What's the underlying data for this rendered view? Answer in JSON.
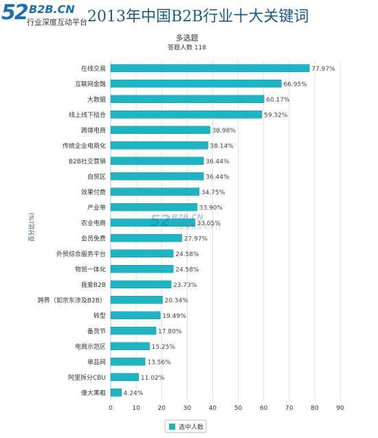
{
  "header": {
    "logo_number": "52",
    "logo_brand": "B2B.CN",
    "logo_tagline": "行业深度互动平台",
    "title": "2013年中国B2B行业十大关键词"
  },
  "watermark": {
    "number": "52",
    "brand": "B2B.CN",
    "tagline": "行业深度互动平台"
  },
  "colors": {
    "bar": "#1fb4c3",
    "bar_stroke": "#179aa8",
    "title": "#1a5a8c",
    "axis_label": "#2a4a7a",
    "grid": "#e0e0e0"
  },
  "chart_data": {
    "type": "bar",
    "orientation": "horizontal",
    "title": "多选题",
    "subtitle": "答题人数 118",
    "ylabel": "百分比(%)",
    "xlabel": "",
    "xlim": [
      0,
      90
    ],
    "x_ticks": [
      0,
      10,
      20,
      30,
      40,
      50,
      60,
      70,
      80,
      90
    ],
    "grid": true,
    "legend_position": "bottom",
    "series": [
      {
        "name": "选中人数",
        "color": "#1fb4c3",
        "values": [
          77.97,
          66.95,
          60.17,
          59.32,
          38.98,
          38.14,
          36.44,
          36.44,
          34.75,
          33.9,
          33.05,
          27.97,
          24.58,
          24.58,
          23.73,
          20.34,
          19.49,
          17.8,
          15.25,
          13.56,
          11.02,
          4.24
        ],
        "labels": [
          "77.97%",
          "66.95%",
          "60.17%",
          "59.32%",
          "38.98%",
          "38.14%",
          "36.44%",
          "36.44%",
          "34.75%",
          "33.90%",
          "33.05%",
          "27.97%",
          "24.58%",
          "24.58%",
          "23.73%",
          "20.34%",
          "19.49%",
          "17.80%",
          "15.25%",
          "13.56%",
          "11.02%",
          "4.24%"
        ]
      }
    ],
    "categories": [
      "在线交易",
      "互联网金融",
      "大数据",
      "线上线下结合",
      "跨境电商",
      "传统企业电商化",
      "B2B社交营销",
      "自贸区",
      "效果付费",
      "产业带",
      "农业电商",
      "会员免费",
      "外贸综合服务平台",
      "物贸一体化",
      "我爱B2B",
      "跨界（如京东涉及B2B）",
      "转型",
      "备货节",
      "电商示范区",
      "单品网",
      "阿里拆分CBU",
      "傻大黑粗"
    ]
  }
}
